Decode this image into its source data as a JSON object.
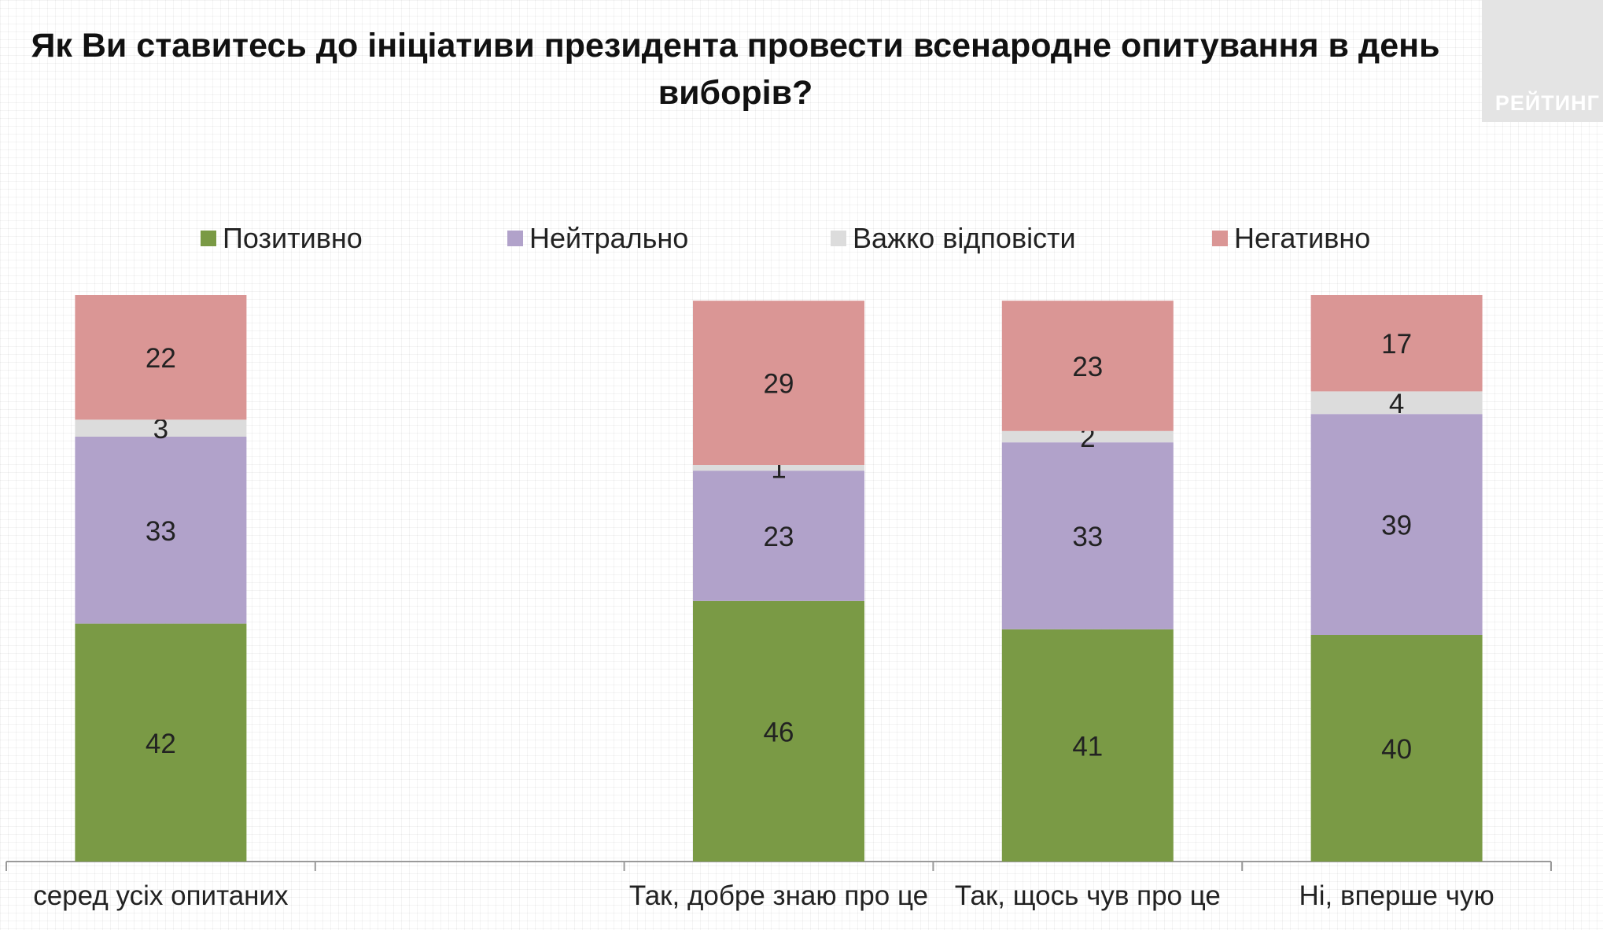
{
  "title": "Як Ви ставитесь до ініціативи президента провести всенародне опитування в день виборів?",
  "logo_text": "РЕЙТИНГ",
  "chart_data": {
    "type": "bar",
    "stacked": true,
    "categories": [
      "серед усіх опитаних",
      "",
      "Так, добре знаю про це",
      "Так, щось чув про це",
      "Ні, вперше чую"
    ],
    "series": [
      {
        "name": "Позитивно",
        "color": "#7a9a45",
        "values": [
          42,
          null,
          46,
          41,
          40
        ]
      },
      {
        "name": "Нейтрально",
        "color": "#b1a2ca",
        "values": [
          33,
          null,
          23,
          33,
          39
        ]
      },
      {
        "name": "Важко відповісти",
        "color": "#dcdcdc",
        "values": [
          3,
          null,
          1,
          2,
          4
        ]
      },
      {
        "name": "Негативно",
        "color": "#da9695",
        "values": [
          22,
          null,
          29,
          23,
          17
        ]
      }
    ],
    "ylim": [
      0,
      100
    ],
    "legend_position": "top",
    "grid": false
  }
}
